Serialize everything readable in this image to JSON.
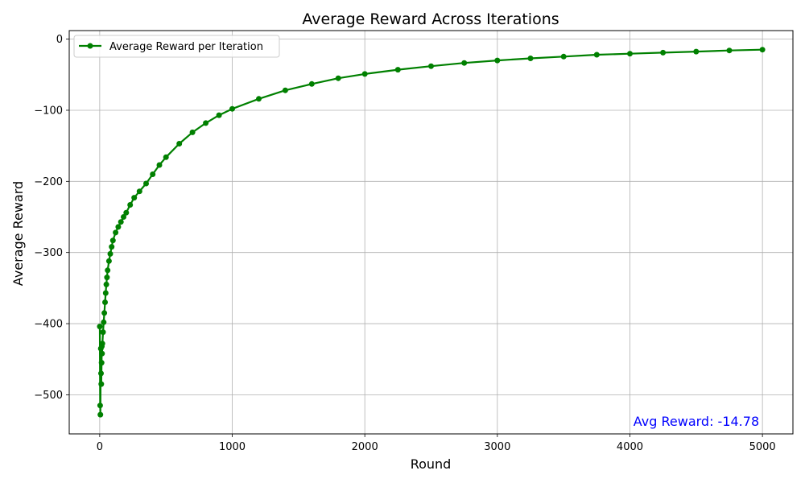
{
  "chart_data": {
    "type": "line",
    "title": "Average Reward Across Iterations",
    "xlabel": "Round",
    "ylabel": "Average Reward",
    "xlim": [
      -230,
      5230
    ],
    "ylim": [
      -555,
      12
    ],
    "xticks": [
      0,
      1000,
      2000,
      3000,
      4000,
      5000
    ],
    "yticks": [
      0,
      -100,
      -200,
      -300,
      -400,
      -500
    ],
    "grid": true,
    "legend_position": "top-left",
    "series": [
      {
        "name": "Average Reward per Iteration",
        "color": "#008000",
        "marker": "circle",
        "x": [
          1,
          3,
          5,
          8,
          10,
          12,
          14,
          16,
          18,
          20,
          25,
          30,
          35,
          40,
          45,
          50,
          55,
          60,
          70,
          80,
          90,
          100,
          120,
          140,
          160,
          180,
          200,
          230,
          260,
          300,
          350,
          400,
          450,
          500,
          600,
          700,
          800,
          900,
          1000,
          1200,
          1400,
          1600,
          1800,
          2000,
          2250,
          2500,
          2750,
          3000,
          3250,
          3500,
          3750,
          4000,
          4250,
          4500,
          4750,
          5000
        ],
        "y": [
          -404,
          -515,
          -528,
          -435,
          -470,
          -485,
          -455,
          -432,
          -442,
          -428,
          -412,
          -398,
          -385,
          -370,
          -357,
          -345,
          -335,
          -325,
          -312,
          -302,
          -292,
          -283,
          -272,
          -264,
          -257,
          -250,
          -244,
          -233,
          -223,
          -214,
          -203,
          -190,
          -177,
          -166,
          -147,
          -131,
          -118,
          -107,
          -98,
          -84,
          -72,
          -63,
          -55,
          -49,
          -43,
          -38,
          -33.5,
          -30,
          -27,
          -24.5,
          -22,
          -20.5,
          -19,
          -17.5,
          -16,
          -14.78
        ]
      }
    ]
  },
  "annotation": {
    "text": "Avg Reward: -14.78",
    "color": "#0000ff",
    "x": 5000,
    "y": -537
  }
}
